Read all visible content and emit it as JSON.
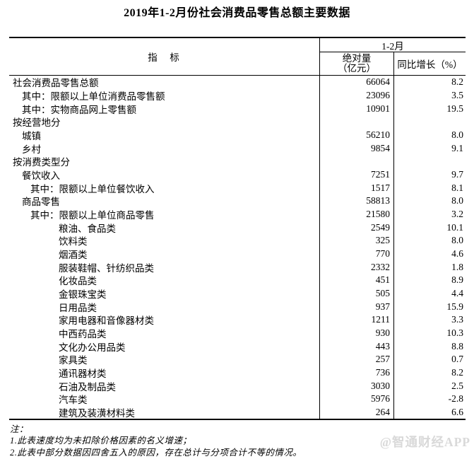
{
  "page": {
    "title": "2019年1-2月份社会消费品零售总额主要数据"
  },
  "table": {
    "header": {
      "indicator": "指　标",
      "period": "1-2月",
      "abs_line1": "绝对量",
      "abs_line2": "（亿元）",
      "growth": "同比增长（%）"
    },
    "rows": [
      {
        "label": "社会消费品零售总额",
        "indent": 0,
        "abs": "66064",
        "growth": "8.2"
      },
      {
        "label": "其中：限额以上单位消费品零售额",
        "indent": 1,
        "abs": "23096",
        "growth": "3.5"
      },
      {
        "label": "其中：实物商品网上零售额",
        "indent": 1,
        "abs": "10901",
        "growth": "19.5"
      },
      {
        "label": "按经营地分",
        "indent": 0,
        "abs": "",
        "growth": ""
      },
      {
        "label": "城镇",
        "indent": 1,
        "abs": "56210",
        "growth": "8.0"
      },
      {
        "label": "乡村",
        "indent": 1,
        "abs": "9854",
        "growth": "9.1"
      },
      {
        "label": "按消费类型分",
        "indent": 0,
        "abs": "",
        "growth": ""
      },
      {
        "label": "餐饮收入",
        "indent": 1,
        "abs": "7251",
        "growth": "9.7"
      },
      {
        "label": "其中：限额以上单位餐饮收入",
        "indent": 2,
        "abs": "1517",
        "growth": "8.1"
      },
      {
        "label": "商品零售",
        "indent": 1,
        "abs": "58813",
        "growth": "8.0"
      },
      {
        "label": "其中：限额以上单位商品零售",
        "indent": 2,
        "abs": "21580",
        "growth": "3.2"
      },
      {
        "label": "粮油、食品类",
        "indent": 3,
        "abs": "2549",
        "growth": "10.1"
      },
      {
        "label": "饮料类",
        "indent": 3,
        "abs": "325",
        "growth": "8.0"
      },
      {
        "label": "烟酒类",
        "indent": 3,
        "abs": "770",
        "growth": "4.6"
      },
      {
        "label": "服装鞋帽、针纺织品类",
        "indent": 3,
        "abs": "2332",
        "growth": "1.8"
      },
      {
        "label": "化妆品类",
        "indent": 3,
        "abs": "451",
        "growth": "8.9"
      },
      {
        "label": "金银珠宝类",
        "indent": 3,
        "abs": "505",
        "growth": "4.4"
      },
      {
        "label": "日用品类",
        "indent": 3,
        "abs": "937",
        "growth": "15.9"
      },
      {
        "label": "家用电器和音像器材类",
        "indent": 3,
        "abs": "1211",
        "growth": "3.3"
      },
      {
        "label": "中西药品类",
        "indent": 3,
        "abs": "930",
        "growth": "10.3"
      },
      {
        "label": "文化办公用品类",
        "indent": 3,
        "abs": "443",
        "growth": "8.8"
      },
      {
        "label": "家具类",
        "indent": 3,
        "abs": "257",
        "growth": "0.7"
      },
      {
        "label": "通讯器材类",
        "indent": 3,
        "abs": "736",
        "growth": "8.2"
      },
      {
        "label": "石油及制品类",
        "indent": 3,
        "abs": "3030",
        "growth": "2.5"
      },
      {
        "label": "汽车类",
        "indent": 3,
        "abs": "5976",
        "growth": "-2.8"
      },
      {
        "label": "建筑及装潢材料类",
        "indent": 3,
        "abs": "264",
        "growth": "6.6"
      }
    ]
  },
  "notes": {
    "heading": "注：",
    "items": [
      "1.此表速度均为未扣除价格因素的名义增速；",
      "2.此表中部分数据因四舍五入的原因，存在总计与分项合计不等的情况。"
    ]
  },
  "watermark": {
    "text": "@智通财经APP",
    "color": "#d9d9d9"
  },
  "colors": {
    "border": "#000000",
    "text": "#000000",
    "background": "#ffffff"
  }
}
